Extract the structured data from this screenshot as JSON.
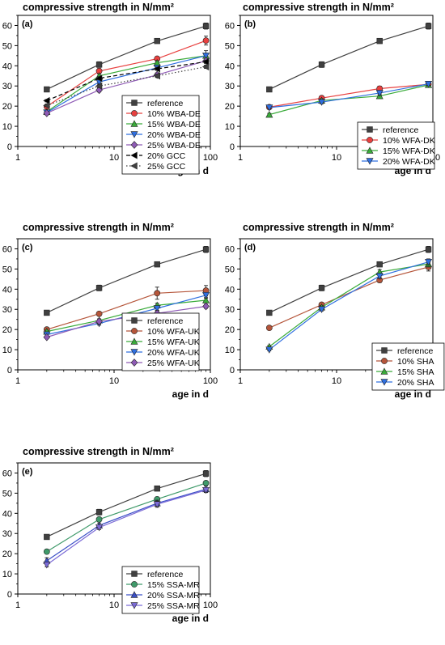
{
  "chart_data": [
    {
      "type": "line",
      "panel_label": "(a)",
      "title": "compressive strength in N/mm²",
      "xlabel": "age in d",
      "ylabel": "",
      "xscale": "log",
      "xlim": [
        1,
        100
      ],
      "ylim": [
        0,
        65
      ],
      "xticks": [
        1,
        10,
        100
      ],
      "yticks": [
        0,
        10,
        20,
        30,
        40,
        50,
        60
      ],
      "grid": false,
      "legend_position": "bottom-right",
      "x": [
        2,
        7,
        28,
        90
      ],
      "series": [
        {
          "name": "reference",
          "color": "#404040",
          "marker": "square",
          "dash": "solid",
          "values": [
            28.3,
            40.6,
            52.3,
            59.7
          ],
          "err": [
            1.0,
            1.4,
            0.8,
            1.5
          ]
        },
        {
          "name": "10% WBA-DE",
          "color": "#e8403f",
          "marker": "circle",
          "dash": "solid",
          "values": [
            19.8,
            37.4,
            43.5,
            52.5
          ],
          "err": [
            0.8,
            1.2,
            1.0,
            2.2
          ]
        },
        {
          "name": "15% WBA-DE",
          "color": "#3aab3a",
          "marker": "triangle-up",
          "dash": "solid",
          "values": [
            17.2,
            35.0,
            41.5,
            45.0
          ],
          "err": [
            0.8,
            1.0,
            1.0,
            1.2
          ]
        },
        {
          "name": "20% WBA-DE",
          "color": "#2f6fe0",
          "marker": "triangle-down",
          "dash": "solid",
          "values": [
            16.8,
            32.0,
            39.0,
            45.0
          ],
          "err": [
            0.8,
            1.0,
            1.0,
            2.5
          ]
        },
        {
          "name": "25% WBA-DE",
          "color": "#8e5ab5",
          "marker": "diamond",
          "dash": "solid",
          "values": [
            16.5,
            28.0,
            35.5,
            42.5
          ],
          "err": [
            0.8,
            1.0,
            1.0,
            1.2
          ]
        },
        {
          "name": "20% GCC",
          "color": "#000000",
          "marker": "triangle-left",
          "dash": "dashed",
          "values": [
            22.7,
            33.8,
            38.5,
            42.0
          ],
          "err": [
            0.6,
            0.8,
            0.8,
            0.8
          ]
        },
        {
          "name": "25% GCC",
          "color": "#404040",
          "marker": "triangle-left",
          "dash": "dotted",
          "values": [
            20.3,
            30.0,
            35.0,
            39.5
          ],
          "err": [
            0.6,
            0.8,
            0.8,
            0.8
          ]
        }
      ]
    },
    {
      "type": "line",
      "panel_label": "(b)",
      "title": "compressive strength in N/mm²",
      "xlabel": "age in d",
      "ylabel": "",
      "xscale": "log",
      "xlim": [
        1,
        100
      ],
      "ylim": [
        0,
        65
      ],
      "xticks": [
        1,
        10,
        100
      ],
      "yticks": [
        0,
        10,
        20,
        30,
        40,
        50,
        60
      ],
      "grid": false,
      "legend_position": "bottom-right",
      "x": [
        2,
        7,
        28,
        90
      ],
      "series": [
        {
          "name": "reference",
          "color": "#404040",
          "marker": "square",
          "dash": "solid",
          "values": [
            28.3,
            40.6,
            52.3,
            59.7
          ],
          "err": [
            1.0,
            1.4,
            0.8,
            1.5
          ]
        },
        {
          "name": "10% WFA-DK",
          "color": "#e8403f",
          "marker": "circle",
          "dash": "solid",
          "values": [
            19.5,
            24.0,
            28.7,
            30.8
          ],
          "err": [
            0.6,
            0.8,
            1.2,
            0.8
          ]
        },
        {
          "name": "15% WFA-DK",
          "color": "#3aab3a",
          "marker": "triangle-up",
          "dash": "solid",
          "values": [
            15.8,
            22.8,
            25.0,
            30.5
          ],
          "err": [
            0.6,
            0.8,
            1.0,
            0.8
          ]
        },
        {
          "name": "20% WFA-DK",
          "color": "#2f6fe0",
          "marker": "triangle-down",
          "dash": "solid",
          "values": [
            19.3,
            22.0,
            26.5,
            31.0
          ],
          "err": [
            0.6,
            0.8,
            1.0,
            0.8
          ]
        }
      ]
    },
    {
      "type": "line",
      "panel_label": "(c)",
      "title": "compressive strength in N/mm²",
      "xlabel": "age in d",
      "ylabel": "",
      "xscale": "log",
      "xlim": [
        1,
        100
      ],
      "ylim": [
        0,
        65
      ],
      "xticks": [
        1,
        10,
        100
      ],
      "yticks": [
        0,
        10,
        20,
        30,
        40,
        50,
        60
      ],
      "grid": false,
      "legend_position": "bottom-right",
      "x": [
        2,
        7,
        28,
        90
      ],
      "series": [
        {
          "name": "reference",
          "color": "#404040",
          "marker": "square",
          "dash": "solid",
          "values": [
            28.3,
            40.6,
            52.3,
            59.7
          ],
          "err": [
            1.0,
            1.4,
            0.8,
            1.5
          ]
        },
        {
          "name": "10% WFA-UK",
          "color": "#b5553a",
          "marker": "circle",
          "dash": "solid",
          "values": [
            20.0,
            27.8,
            38.0,
            39.3
          ],
          "err": [
            0.6,
            0.8,
            3.0,
            2.5
          ]
        },
        {
          "name": "15% WFA-UK",
          "color": "#3aab3a",
          "marker": "triangle-up",
          "dash": "solid",
          "values": [
            19.0,
            24.5,
            32.0,
            34.5
          ],
          "err": [
            0.6,
            0.8,
            1.0,
            1.0
          ]
        },
        {
          "name": "20% WFA-UK",
          "color": "#2f6fe0",
          "marker": "triangle-down",
          "dash": "solid",
          "values": [
            17.5,
            23.0,
            30.5,
            37.0
          ],
          "err": [
            0.6,
            0.8,
            1.0,
            1.0
          ]
        },
        {
          "name": "25% WFA-UK",
          "color": "#8e5ab5",
          "marker": "diamond",
          "dash": "solid",
          "values": [
            16.2,
            24.0,
            28.0,
            31.5
          ],
          "err": [
            0.6,
            0.8,
            1.2,
            1.0
          ]
        }
      ]
    },
    {
      "type": "line",
      "panel_label": "(d)",
      "title": "compressive strength in N/mm²",
      "xlabel": "age in d",
      "ylabel": "",
      "xscale": "log",
      "xlim": [
        1,
        100
      ],
      "ylim": [
        0,
        65
      ],
      "xticks": [
        1,
        10,
        100
      ],
      "yticks": [
        0,
        10,
        20,
        30,
        40,
        50,
        60
      ],
      "grid": false,
      "legend_position": "bottom-right",
      "x": [
        2,
        7,
        28,
        90
      ],
      "series": [
        {
          "name": "reference",
          "color": "#404040",
          "marker": "square",
          "dash": "solid",
          "values": [
            28.3,
            40.6,
            52.3,
            59.7
          ],
          "err": [
            1.0,
            1.4,
            0.8,
            1.5
          ]
        },
        {
          "name": "10% SHA",
          "color": "#b5553a",
          "marker": "circle",
          "dash": "solid",
          "values": [
            20.8,
            32.3,
            44.5,
            51.0
          ],
          "err": [
            0.6,
            0.8,
            1.2,
            2.0
          ]
        },
        {
          "name": "15% SHA",
          "color": "#3aab3a",
          "marker": "triangle-up",
          "dash": "solid",
          "values": [
            11.5,
            31.0,
            48.5,
            52.5
          ],
          "err": [
            0.6,
            0.8,
            1.2,
            1.5
          ]
        },
        {
          "name": "20% SHA",
          "color": "#2f6fe0",
          "marker": "triangle-down",
          "dash": "solid",
          "values": [
            10.0,
            30.0,
            46.5,
            53.5
          ],
          "err": [
            0.6,
            0.8,
            1.2,
            1.5
          ]
        }
      ]
    },
    {
      "type": "line",
      "panel_label": "(e)",
      "title": "compressive strength in N/mm²",
      "xlabel": "age in d",
      "ylabel": "",
      "xscale": "log",
      "xlim": [
        1,
        100
      ],
      "ylim": [
        0,
        65
      ],
      "xticks": [
        1,
        10,
        100
      ],
      "yticks": [
        0,
        10,
        20,
        30,
        40,
        50,
        60
      ],
      "grid": false,
      "legend_position": "bottom-right",
      "x": [
        2,
        7,
        28,
        90
      ],
      "series": [
        {
          "name": "reference",
          "color": "#404040",
          "marker": "square",
          "dash": "solid",
          "values": [
            28.3,
            40.6,
            52.3,
            59.7
          ],
          "err": [
            1.0,
            1.4,
            0.8,
            1.5
          ]
        },
        {
          "name": "15% SSA-MR",
          "color": "#3f9a6a",
          "marker": "circle",
          "dash": "solid",
          "values": [
            21.0,
            37.0,
            47.0,
            55.0
          ],
          "err": [
            0.8,
            1.0,
            1.0,
            1.0
          ]
        },
        {
          "name": "20% SSA-MR",
          "color": "#3b4fc7",
          "marker": "triangle-up",
          "dash": "solid",
          "values": [
            16.5,
            34.0,
            45.0,
            52.0
          ],
          "err": [
            1.5,
            1.2,
            1.5,
            1.5
          ]
        },
        {
          "name": "25% SSA-MR",
          "color": "#7b6ad6",
          "marker": "triangle-down",
          "dash": "solid",
          "values": [
            14.5,
            33.0,
            44.5,
            51.5
          ],
          "err": [
            1.0,
            1.0,
            1.5,
            1.2
          ]
        }
      ]
    }
  ]
}
